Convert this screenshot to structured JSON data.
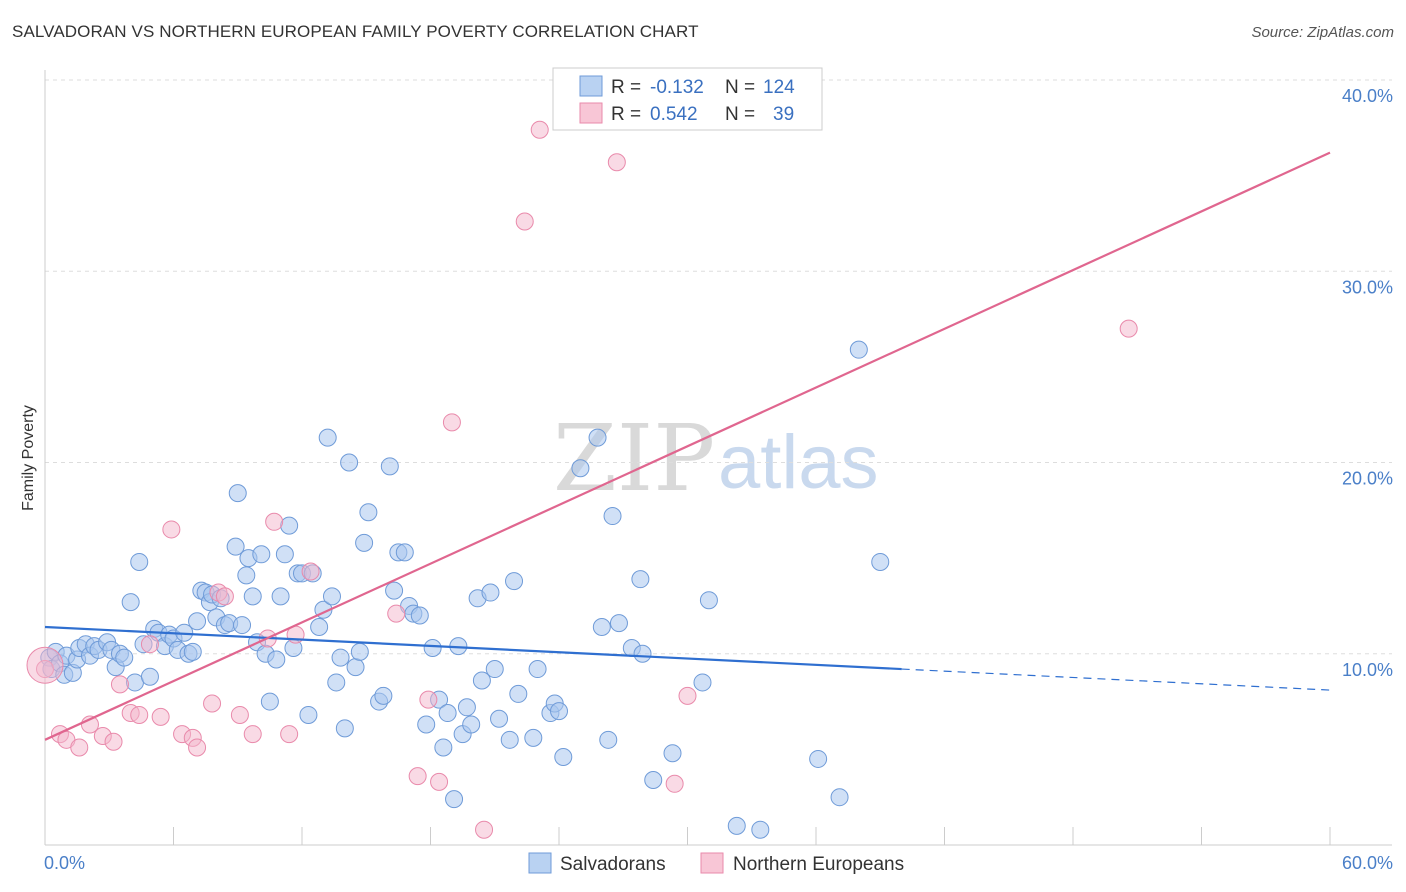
{
  "title": "SALVADORAN VS NORTHERN EUROPEAN FAMILY POVERTY CORRELATION CHART",
  "source": "Source: ZipAtlas.com",
  "watermark": {
    "zip": "ZIP",
    "atlas": "atlas"
  },
  "colors": {
    "salvadoran": "#a9c6ee",
    "salvadoran_line": "#2f6fd0",
    "northern": "#f4b6cb",
    "northern_line": "#e0668f",
    "tick": "#4a7fc8"
  },
  "legend_top": {
    "rows": [
      {
        "r_label": "R =",
        "r_value": "-0.132",
        "n_label": "N =",
        "n_value": "124"
      },
      {
        "r_label": "R =",
        "r_value": "0.542",
        "n_label": "N =",
        "n_value": "39"
      }
    ]
  },
  "legend_bottom": {
    "items": [
      "Salvadorans",
      "Northern Europeans"
    ]
  },
  "chart_data": {
    "type": "scatter",
    "title": "SALVADORAN VS NORTHERN EUROPEAN FAMILY POVERTY CORRELATION CHART",
    "xlabel": "",
    "ylabel": "Family Poverty",
    "xlim": [
      0,
      60
    ],
    "ylim": [
      0,
      40
    ],
    "x_tick_labels": [
      "0.0%",
      "60.0%"
    ],
    "y_tick_labels": [
      "10.0%",
      "20.0%",
      "30.0%",
      "40.0%"
    ],
    "y_ticks": [
      10,
      20,
      30,
      40
    ],
    "grid": true,
    "legend": "top-center",
    "series": [
      {
        "name": "Salvadorans",
        "r": -0.132,
        "n": 124,
        "trend": {
          "x": [
            0,
            40,
            60
          ],
          "y": [
            11.4,
            9.2,
            8.1
          ],
          "dashed_from_x": 40
        },
        "points": [
          [
            0.2,
            9.8
          ],
          [
            0.3,
            9.2
          ],
          [
            0.5,
            10.1
          ],
          [
            0.7,
            9.5
          ],
          [
            0.9,
            8.9
          ],
          [
            1.0,
            9.9
          ],
          [
            1.3,
            9.0
          ],
          [
            1.5,
            9.7
          ],
          [
            1.6,
            10.3
          ],
          [
            1.9,
            10.5
          ],
          [
            2.1,
            9.9
          ],
          [
            2.3,
            10.4
          ],
          [
            2.5,
            10.2
          ],
          [
            2.9,
            10.6
          ],
          [
            3.1,
            10.2
          ],
          [
            3.3,
            9.3
          ],
          [
            3.5,
            10.0
          ],
          [
            3.7,
            9.8
          ],
          [
            4.0,
            12.7
          ],
          [
            4.2,
            8.5
          ],
          [
            4.4,
            14.8
          ],
          [
            4.6,
            10.5
          ],
          [
            4.9,
            8.8
          ],
          [
            5.1,
            11.3
          ],
          [
            5.3,
            11.1
          ],
          [
            5.6,
            10.4
          ],
          [
            5.8,
            11.0
          ],
          [
            6.0,
            10.8
          ],
          [
            6.2,
            10.2
          ],
          [
            6.5,
            11.1
          ],
          [
            6.7,
            10.0
          ],
          [
            6.9,
            10.1
          ],
          [
            7.1,
            11.7
          ],
          [
            7.3,
            13.3
          ],
          [
            7.5,
            13.2
          ],
          [
            7.7,
            12.7
          ],
          [
            7.8,
            13.1
          ],
          [
            8.0,
            11.9
          ],
          [
            8.2,
            12.9
          ],
          [
            8.4,
            11.5
          ],
          [
            8.6,
            11.6
          ],
          [
            8.9,
            15.6
          ],
          [
            9.0,
            18.4
          ],
          [
            9.2,
            11.5
          ],
          [
            9.4,
            14.1
          ],
          [
            9.5,
            15.0
          ],
          [
            9.7,
            13.0
          ],
          [
            9.9,
            10.6
          ],
          [
            10.1,
            15.2
          ],
          [
            10.3,
            10.0
          ],
          [
            10.5,
            7.5
          ],
          [
            10.8,
            9.7
          ],
          [
            11.0,
            13.0
          ],
          [
            11.2,
            15.2
          ],
          [
            11.4,
            16.7
          ],
          [
            11.6,
            10.3
          ],
          [
            11.8,
            14.2
          ],
          [
            12.0,
            14.2
          ],
          [
            12.3,
            6.8
          ],
          [
            12.5,
            14.2
          ],
          [
            12.8,
            11.4
          ],
          [
            13.0,
            12.3
          ],
          [
            13.2,
            21.3
          ],
          [
            13.4,
            13.0
          ],
          [
            13.6,
            8.5
          ],
          [
            13.8,
            9.8
          ],
          [
            14.0,
            6.1
          ],
          [
            14.2,
            20.0
          ],
          [
            14.5,
            9.3
          ],
          [
            14.7,
            10.1
          ],
          [
            14.9,
            15.8
          ],
          [
            15.1,
            17.4
          ],
          [
            15.6,
            7.5
          ],
          [
            15.8,
            7.8
          ],
          [
            16.1,
            19.8
          ],
          [
            16.3,
            13.3
          ],
          [
            16.5,
            15.3
          ],
          [
            16.8,
            15.3
          ],
          [
            17.0,
            12.5
          ],
          [
            17.2,
            12.1
          ],
          [
            17.5,
            12.0
          ],
          [
            17.8,
            6.3
          ],
          [
            18.1,
            10.3
          ],
          [
            18.4,
            7.6
          ],
          [
            18.6,
            5.1
          ],
          [
            18.8,
            6.9
          ],
          [
            19.1,
            2.4
          ],
          [
            19.3,
            10.4
          ],
          [
            19.5,
            5.8
          ],
          [
            19.7,
            7.2
          ],
          [
            19.9,
            6.3
          ],
          [
            20.2,
            12.9
          ],
          [
            20.4,
            8.6
          ],
          [
            20.8,
            13.2
          ],
          [
            21.0,
            9.2
          ],
          [
            21.2,
            6.6
          ],
          [
            21.7,
            5.5
          ],
          [
            21.9,
            13.8
          ],
          [
            22.1,
            7.9
          ],
          [
            22.8,
            5.6
          ],
          [
            23.0,
            9.2
          ],
          [
            23.6,
            6.9
          ],
          [
            23.8,
            7.4
          ],
          [
            24.0,
            7.0
          ],
          [
            24.2,
            4.6
          ],
          [
            25.0,
            19.7
          ],
          [
            25.8,
            21.3
          ],
          [
            26.0,
            11.4
          ],
          [
            26.3,
            5.5
          ],
          [
            26.5,
            17.2
          ],
          [
            26.8,
            11.6
          ],
          [
            27.4,
            10.3
          ],
          [
            27.8,
            13.9
          ],
          [
            27.9,
            10.0
          ],
          [
            28.4,
            3.4
          ],
          [
            29.3,
            4.8
          ],
          [
            30.7,
            8.5
          ],
          [
            31.0,
            12.8
          ],
          [
            32.3,
            1.0
          ],
          [
            33.4,
            0.8
          ],
          [
            36.1,
            4.5
          ],
          [
            37.1,
            2.5
          ],
          [
            38.0,
            25.9
          ],
          [
            39.0,
            14.8
          ]
        ]
      },
      {
        "name": "Northern Europeans",
        "r": 0.542,
        "n": 39,
        "trend": {
          "x": [
            0,
            60
          ],
          "y": [
            5.5,
            36.2
          ]
        },
        "points": [
          [
            0.0,
            9.2
          ],
          [
            0.7,
            5.8
          ],
          [
            1.0,
            5.5
          ],
          [
            1.6,
            5.1
          ],
          [
            2.1,
            6.3
          ],
          [
            2.7,
            5.7
          ],
          [
            3.2,
            5.4
          ],
          [
            3.5,
            8.4
          ],
          [
            4.0,
            6.9
          ],
          [
            4.4,
            6.8
          ],
          [
            4.9,
            10.5
          ],
          [
            5.4,
            6.7
          ],
          [
            5.9,
            16.5
          ],
          [
            6.4,
            5.8
          ],
          [
            6.9,
            5.6
          ],
          [
            7.1,
            5.1
          ],
          [
            7.8,
            7.4
          ],
          [
            8.1,
            13.2
          ],
          [
            8.4,
            13.0
          ],
          [
            9.1,
            6.8
          ],
          [
            9.7,
            5.8
          ],
          [
            10.4,
            10.8
          ],
          [
            10.7,
            16.9
          ],
          [
            11.4,
            5.8
          ],
          [
            11.7,
            11.0
          ],
          [
            12.4,
            14.3
          ],
          [
            16.4,
            12.1
          ],
          [
            17.4,
            3.6
          ],
          [
            17.9,
            7.6
          ],
          [
            18.4,
            3.3
          ],
          [
            19.0,
            22.1
          ],
          [
            20.5,
            0.8
          ],
          [
            22.4,
            32.6
          ],
          [
            23.1,
            37.4
          ],
          [
            26.7,
            35.7
          ],
          [
            29.4,
            3.2
          ],
          [
            30.0,
            7.8
          ],
          [
            50.6,
            27.0
          ],
          [
            0.0,
            9.4
          ]
        ]
      }
    ]
  }
}
